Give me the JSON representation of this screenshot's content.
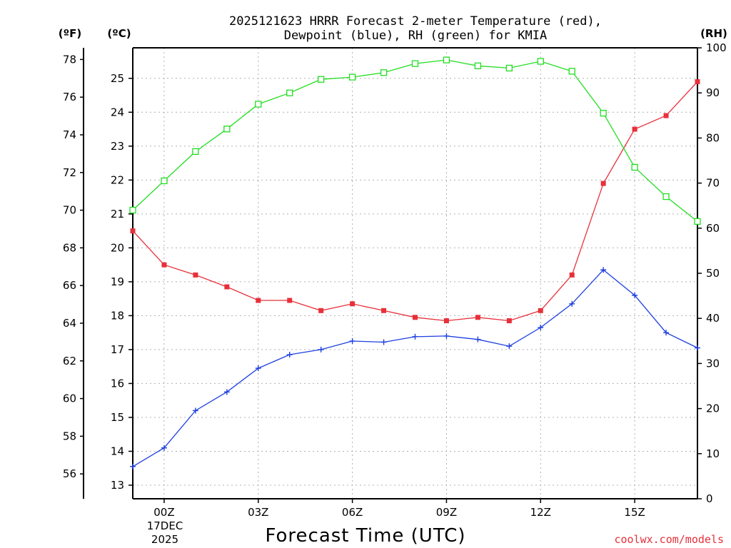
{
  "chart_data": {
    "type": "line",
    "title_line1": "2025121623 HRRR Forecast 2-meter Temperature (red),",
    "title_line2": "Dewpoint (blue), RH (green) for KMIA",
    "xlabel": "Forecast Time (UTC)",
    "unit_f": "(ºF)",
    "unit_c": "(ºC)",
    "unit_rh": "(RH)",
    "date_line1": "17DEC",
    "date_line2": "2025",
    "watermark": "coolwx.com/models",
    "x_hours": [
      -1,
      0,
      1,
      2,
      3,
      4,
      5,
      6,
      7,
      8,
      9,
      10,
      11,
      12,
      13,
      14,
      15,
      16,
      17
    ],
    "xlim": [
      -1,
      17
    ],
    "x_ticks": [
      {
        "h": 0,
        "label": "00Z"
      },
      {
        "h": 3,
        "label": "03Z"
      },
      {
        "h": 6,
        "label": "06Z"
      },
      {
        "h": 9,
        "label": "09Z"
      },
      {
        "h": 12,
        "label": "12Z"
      },
      {
        "h": 15,
        "label": "15Z"
      }
    ],
    "ylim_c": [
      12.6,
      25.9
    ],
    "ylim_rh": [
      0,
      100
    ],
    "y_ticks_c": [
      "13",
      "14",
      "15",
      "16",
      "17",
      "18",
      "19",
      "20",
      "21",
      "22",
      "23",
      "24",
      "25"
    ],
    "y_ticks_f": [
      "56",
      "58",
      "60",
      "62",
      "64",
      "66",
      "68",
      "70",
      "72",
      "74",
      "76",
      "78"
    ],
    "y_ticks_rh": [
      "0",
      "10",
      "20",
      "30",
      "40",
      "50",
      "60",
      "70",
      "80",
      "90",
      "100"
    ],
    "grid": true,
    "series": [
      {
        "name": "Temperature",
        "unit": "C",
        "color": "#e8303a",
        "marker": "filled-square",
        "values": [
          20.5,
          19.5,
          19.2,
          18.85,
          18.45,
          18.45,
          18.15,
          18.35,
          18.15,
          17.95,
          17.85,
          17.95,
          17.85,
          18.15,
          19.2,
          21.9,
          23.5,
          23.9,
          24.9
        ]
      },
      {
        "name": "Dewpoint",
        "unit": "C",
        "color": "#1e3fe0",
        "marker": "plus",
        "values": [
          13.55,
          14.1,
          15.2,
          15.75,
          16.45,
          16.85,
          17.0,
          17.25,
          17.22,
          17.38,
          17.4,
          17.3,
          17.1,
          17.65,
          18.35,
          19.35,
          18.6,
          17.5,
          17.05
        ]
      },
      {
        "name": "RH",
        "unit": "%",
        "color": "#22dd22",
        "marker": "open-square",
        "values": [
          64,
          70.5,
          77,
          82,
          87.5,
          90,
          93,
          93.5,
          94.5,
          96.5,
          97.3,
          96,
          95.5,
          97,
          94.8,
          85.5,
          73.5,
          67,
          61.5
        ]
      }
    ]
  }
}
